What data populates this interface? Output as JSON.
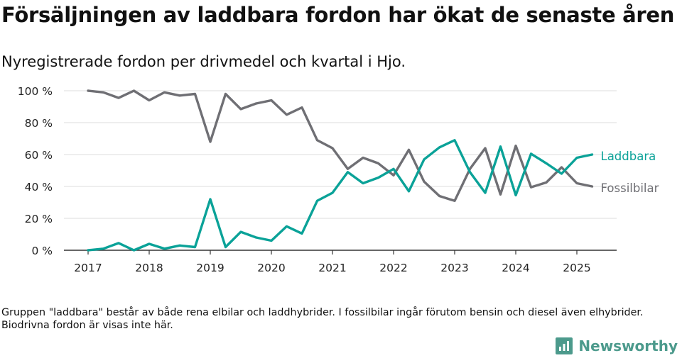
{
  "header": {
    "title": "Försäljningen av laddbara fordon har ökat de senaste åren",
    "subtitle": "Nyregistrerade fordon per drivmedel och kvartal i Hjo."
  },
  "footer": {
    "note": "Gruppen \"laddbara\" består av både rena elbilar och laddhybrider. I fossilbilar ingår förutom bensin och diesel även elhybrider. Biodrivna fordon är visas inte här.",
    "brand": "Newsworthy",
    "brand_icon": "bar-chart-icon"
  },
  "chart_data": {
    "type": "line",
    "ylim": [
      0,
      100
    ],
    "yticks": [
      0,
      20,
      40,
      60,
      80,
      100
    ],
    "ytick_labels": [
      "0 %",
      "20 %",
      "40 %",
      "60 %",
      "80 %",
      "100 %"
    ],
    "xlim": [
      2017,
      2025.5
    ],
    "xticks": [
      2017,
      2018,
      2019,
      2020,
      2021,
      2022,
      2023,
      2024,
      2025
    ],
    "xtick_labels": [
      "2017",
      "2018",
      "2019",
      "2020",
      "2021",
      "2022",
      "2023",
      "2024",
      "2025"
    ],
    "grid": "horizontal",
    "legend": "inline labels at right end of lines",
    "x": [
      2017,
      2017.25,
      2017.5,
      2017.75,
      2018,
      2018.25,
      2018.5,
      2018.75,
      2019,
      2019.25,
      2019.5,
      2019.75,
      2020,
      2020.25,
      2020.5,
      2020.75,
      2021,
      2021.25,
      2021.5,
      2021.75,
      2022,
      2022.25,
      2022.5,
      2022.75,
      2023,
      2023.25,
      2023.5,
      2023.75,
      2024,
      2024.25,
      2024.5,
      2024.75,
      2025,
      2025.25
    ],
    "series": [
      {
        "name": "Fossilbilar",
        "color": "#6f6f74",
        "values": [
          100,
          99,
          95.5,
          100,
          94,
          99,
          97,
          98,
          68,
          98,
          88.5,
          92,
          94,
          85,
          89.5,
          69,
          64,
          51,
          58,
          54.5,
          47,
          63,
          43,
          34,
          31,
          51,
          64,
          35,
          65.5,
          39.5,
          42.5,
          52,
          42,
          40
        ]
      },
      {
        "name": "Laddbara",
        "color": "#0aa298",
        "values": [
          0,
          1,
          4.5,
          0,
          4,
          1,
          3,
          2,
          32,
          2,
          11.5,
          8,
          6,
          15,
          10.5,
          31,
          36,
          49,
          42,
          45.5,
          51,
          37,
          57,
          64.5,
          69,
          49,
          36,
          65,
          34.5,
          60.5,
          54.5,
          48,
          58,
          60
        ]
      }
    ]
  }
}
